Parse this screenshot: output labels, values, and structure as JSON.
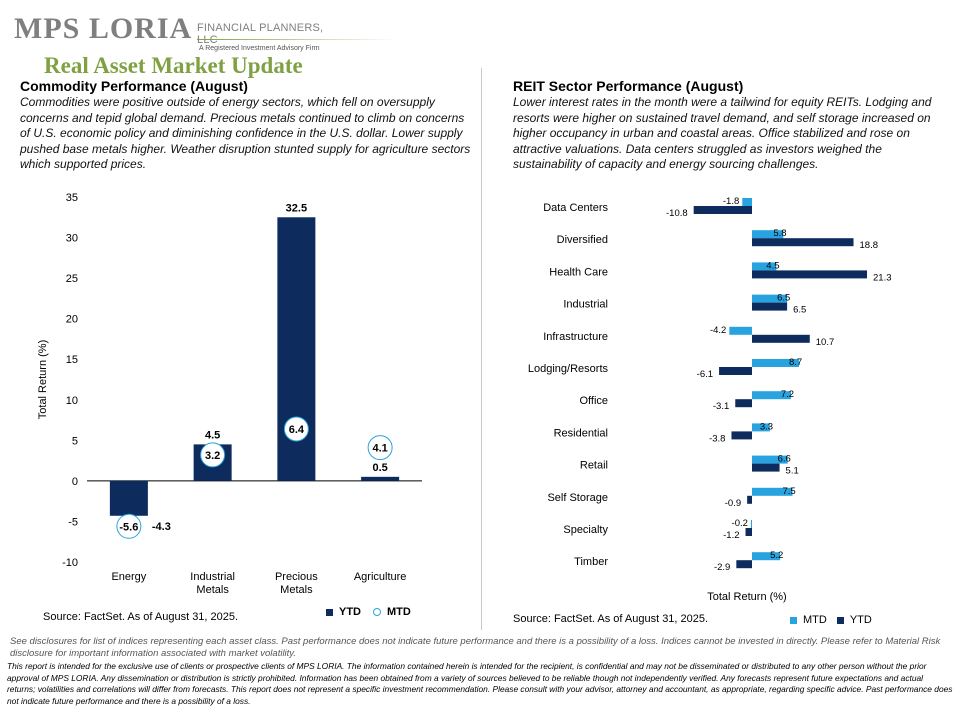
{
  "header": {
    "logo_text": "MPS LORIA",
    "logo_subtitle": "FINANCIAL PLANNERS, LLC",
    "logo_tagline": "A Registered Investment Advisory Firm",
    "page_title": "Real Asset Market Update"
  },
  "left": {
    "heading": "Commodity Performance (August)",
    "paragraph": "Commodities were positive outside of energy sectors, which fell on oversupply concerns and tepid global demand. Precious metals continued to climb on concerns of U.S. economic policy and diminishing confidence in the U.S. dollar. Lower supply pushed base metals higher. Weather disruption stunted supply for agriculture sectors which supported prices.",
    "source": "Source: FactSet. As of August 31, 2025.",
    "legend_ytd": "YTD",
    "legend_mtd": "MTD"
  },
  "right": {
    "heading": "REIT Sector Performance (August)",
    "paragraph": "Lower interest rates in the month were a tailwind for equity REITs. Lodging and resorts were higher on sustained travel demand, and self storage increased on higher occupancy in urban and coastal areas. Office stabilized and rose on attractive valuations. Data centers struggled as investors weighed the sustainability of capacity and energy sourcing challenges.",
    "source": "Source: FactSet. As of August 31, 2025.",
    "legend_mtd": "MTD",
    "legend_ytd": "YTD"
  },
  "colors": {
    "ytd": "#0d2b5c",
    "mtd": "#29a3e0",
    "title_green": "#7fa142"
  },
  "chart_data": [
    {
      "type": "bar",
      "categories": [
        "Energy",
        "Industrial Metals",
        "Precious Metals",
        "Agriculture"
      ],
      "category_lines": [
        [
          "Energy"
        ],
        [
          "Industrial",
          "Metals"
        ],
        [
          "Precious",
          "Metals"
        ],
        [
          "Agriculture"
        ]
      ],
      "series": [
        {
          "name": "YTD",
          "values": [
            -4.3,
            4.5,
            32.5,
            0.5
          ],
          "style": "bar"
        },
        {
          "name": "MTD",
          "values": [
            -5.6,
            3.2,
            6.4,
            4.1
          ],
          "style": "circle-marker"
        }
      ],
      "ylabel": "Total Return (%)",
      "ylim": [
        -10,
        35
      ],
      "yticks": [
        -10,
        -5,
        0,
        5,
        10,
        15,
        20,
        25,
        30,
        35
      ],
      "grid": false,
      "legend": "bottom-right"
    },
    {
      "type": "bar",
      "orientation": "horizontal",
      "categories": [
        "Data Centers",
        "Diversified",
        "Health Care",
        "Industrial",
        "Infrastructure",
        "Lodging/Resorts",
        "Office",
        "Residential",
        "Retail",
        "Self Storage",
        "Specialty",
        "Timber"
      ],
      "series": [
        {
          "name": "MTD",
          "values": [
            -1.8,
            5.8,
            4.5,
            6.5,
            -4.2,
            8.7,
            7.2,
            3.3,
            6.6,
            7.5,
            -0.2,
            5.2
          ]
        },
        {
          "name": "YTD",
          "values": [
            -10.8,
            18.8,
            21.3,
            6.5,
            10.7,
            -6.1,
            -3.1,
            -3.8,
            5.1,
            -0.9,
            -1.2,
            -2.9
          ]
        }
      ],
      "xlabel": "Total Return (%)",
      "xlim": [
        -11,
        22
      ],
      "grid": false,
      "legend": "bottom-right"
    }
  ],
  "disclaimers": {
    "line1": "See disclosures for list of indices representing each asset class. Past performance does not indicate future performance and there is a possibility of a loss. Indices cannot be invested in directly. Please refer to Material Risk disclosure for important information associated with market volatility.",
    "line2": "This report is intended for the exclusive use of clients or prospective clients of MPS LORIA. The information contained herein is intended for the recipient, is confidential and may not be disseminated or distributed to any other person without the prior approval of MPS LORIA. Any dissemination or distribution is strictly prohibited. Information has been obtained from a variety of sources believed to be reliable though not independently verified. Any forecasts represent future expectations and actual returns; volatilities and correlations will differ from forecasts. This report does not represent a specific investment recommendation. Please consult with your advisor, attorney and accountant, as appropriate, regarding specific advice. Past performance does not indicate future performance and there is a possibility of a loss."
  }
}
